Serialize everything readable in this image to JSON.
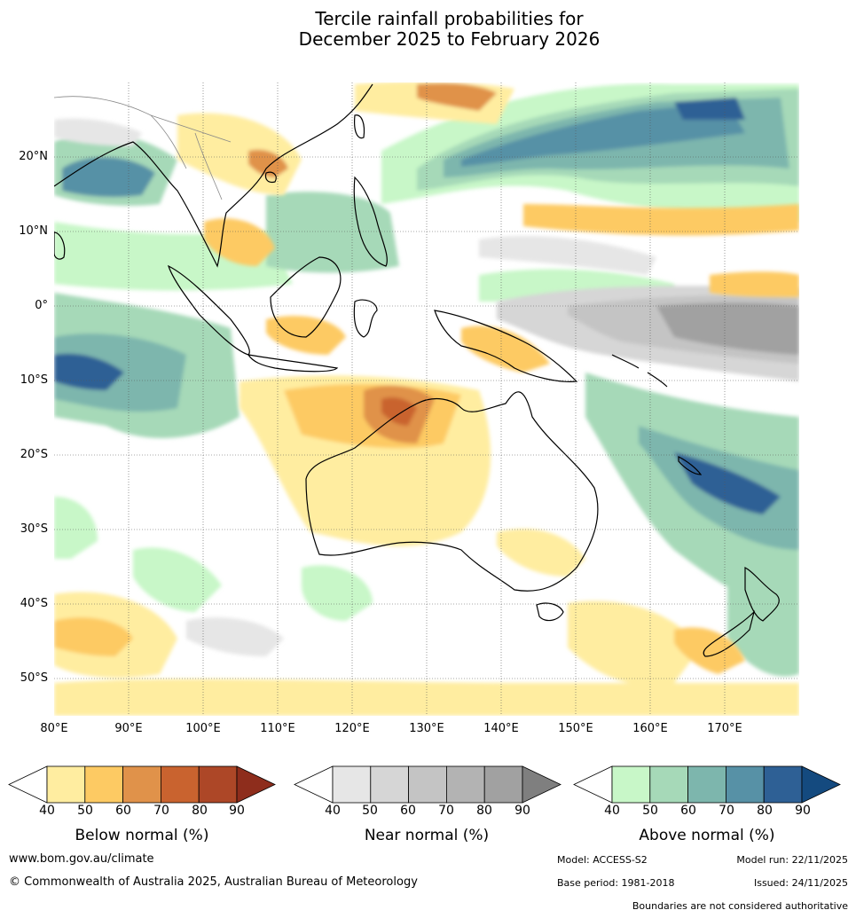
{
  "title": {
    "line1": "Tercile rainfall probabilities for",
    "line2": "December 2025 to February 2026"
  },
  "map": {
    "lat_labels": [
      "20°N",
      "10°N",
      "0°",
      "10°S",
      "20°S",
      "30°S",
      "40°S",
      "50°S"
    ],
    "lon_labels": [
      "80°E",
      "90°E",
      "100°E",
      "110°E",
      "120°E",
      "130°E",
      "140°E",
      "150°E",
      "160°E",
      "170°E"
    ]
  },
  "colorbars": [
    {
      "title": "Below normal (%)",
      "ticks": [
        "40",
        "50",
        "60",
        "70",
        "80",
        "90"
      ],
      "colors": [
        "#ffeda0",
        "#fdca63",
        "#e0924a",
        "#c9632f",
        "#ad4727",
        "#8e2d1c"
      ]
    },
    {
      "title": "Near normal (%)",
      "ticks": [
        "40",
        "50",
        "60",
        "70",
        "80",
        "90"
      ],
      "colors": [
        "#e6e6e6",
        "#d6d6d6",
        "#c4c4c4",
        "#b3b3b3",
        "#a1a1a1",
        "#7f7f7f"
      ]
    },
    {
      "title": "Above normal (%)",
      "ticks": [
        "40",
        "50",
        "60",
        "70",
        "80",
        "90"
      ],
      "colors": [
        "#c8f7c8",
        "#a6d9b8",
        "#7db6ad",
        "#5791a6",
        "#2e6095",
        "#144a7f"
      ]
    }
  ],
  "footer": {
    "website": "www.bom.gov.au/climate",
    "copyright": "© Commonwealth of Australia 2025, Australian Bureau of Meteorology",
    "model": "Model: ACCESS-S2",
    "model_run": "Model run: 22/11/2025",
    "base_period": "Base period: 1981-2018",
    "issued": "Issued: 24/11/2025",
    "disclaimer": "Boundaries are not considered authoritative"
  }
}
